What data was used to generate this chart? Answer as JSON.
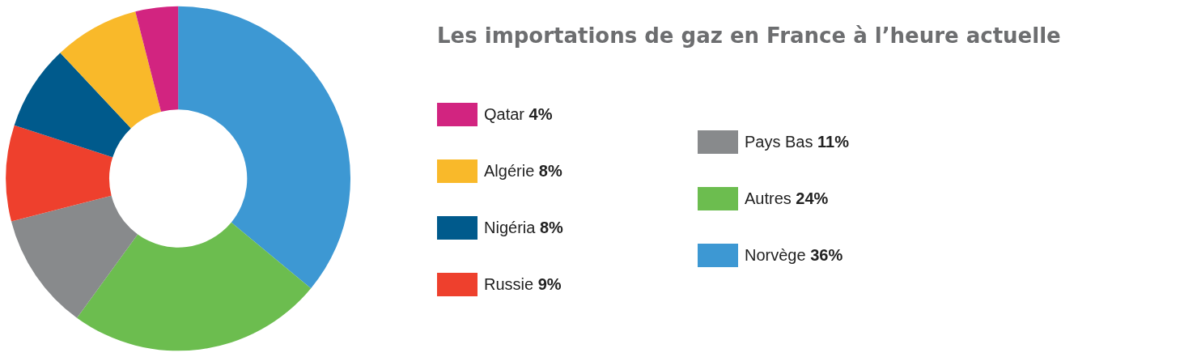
{
  "chart_data": {
    "type": "donut",
    "title": "Les importations de gaz en France à l’heure actuelle",
    "categories": [
      "Norvège",
      "Autres",
      "Pays Bas",
      "Russie",
      "Nigéria",
      "Algérie",
      "Qatar"
    ],
    "values": [
      36,
      24,
      11,
      9,
      8,
      8,
      4
    ],
    "value_labels": [
      "36%",
      "24%",
      "11%",
      "9%",
      "8%",
      "8%",
      "4%"
    ],
    "colors": [
      "#3d98d3",
      "#6cbd4f",
      "#888a8c",
      "#ee402d",
      "#005a8c",
      "#f9b92a",
      "#d22480"
    ],
    "legend": "right"
  }
}
